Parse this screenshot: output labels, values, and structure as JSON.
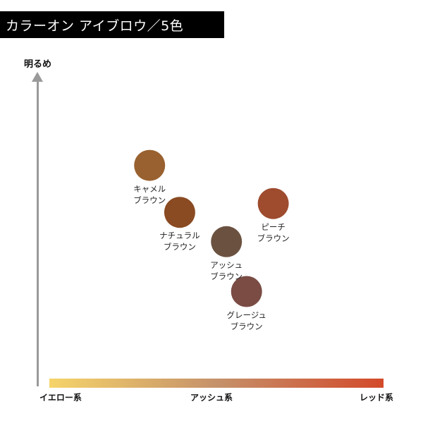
{
  "title": "カラーオン アイブロウ／5色",
  "chart_data": {
    "type": "scatter",
    "title": "カラーオン アイブロウ／5色",
    "ylabel": "明るめ",
    "xlabel": "",
    "x_categories": [
      "イエロー系",
      "アッシュ系",
      "レッド系"
    ],
    "x_gradient_colors": [
      "#f6d46a",
      "#c5916a",
      "#d34a2a"
    ],
    "axis_color": "#9a9a9a",
    "xlim": [
      0,
      1
    ],
    "ylim": [
      0,
      1
    ],
    "points": [
      {
        "label_lines": [
          "キャメル",
          "ブラウン"
        ],
        "x": 0.3,
        "y": 0.71,
        "color": "#99612f"
      },
      {
        "label_lines": [
          "ナチュラル",
          "ブラウン"
        ],
        "x": 0.39,
        "y": 0.55,
        "color": "#8a4a22"
      },
      {
        "label_lines": [
          "ピーチ",
          "ブラウン"
        ],
        "x": 0.67,
        "y": 0.58,
        "color": "#9e4b2e"
      },
      {
        "label_lines": [
          "アッシュ",
          "ブラウン"
        ],
        "x": 0.53,
        "y": 0.45,
        "color": "#6b5240"
      },
      {
        "label_lines": [
          "グレージュ",
          "ブラウン"
        ],
        "x": 0.59,
        "y": 0.28,
        "color": "#7a4c44"
      }
    ]
  }
}
